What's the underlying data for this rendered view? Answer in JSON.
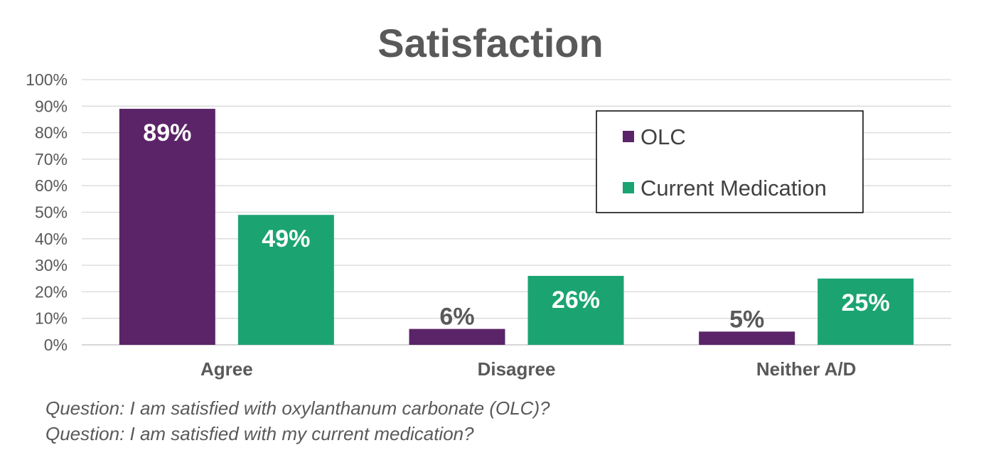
{
  "chart_data": {
    "type": "bar",
    "title": "Satisfaction",
    "categories": [
      "Agree",
      "Disagree",
      "Neither A/D"
    ],
    "series": [
      {
        "name": "OLC",
        "color": "#5b2468",
        "values": [
          89,
          6,
          5
        ],
        "labels": [
          "89%",
          "6%",
          "5%"
        ]
      },
      {
        "name": "Current Medication",
        "color": "#1ba472",
        "values": [
          49,
          26,
          25
        ],
        "labels": [
          "49%",
          "26%",
          "25%"
        ]
      }
    ],
    "ylim": [
      0,
      100
    ],
    "yticks": [
      "0%",
      "10%",
      "20%",
      "30%",
      "40%",
      "50%",
      "60%",
      "70%",
      "80%",
      "90%",
      "100%"
    ],
    "grid": true,
    "legend_position": "top-right",
    "xlabel": "",
    "ylabel": ""
  },
  "footnotes": [
    "Question: I am satisfied with oxylanthanum carbonate (OLC)?",
    "Question: I am satisfied with my current medication?"
  ]
}
